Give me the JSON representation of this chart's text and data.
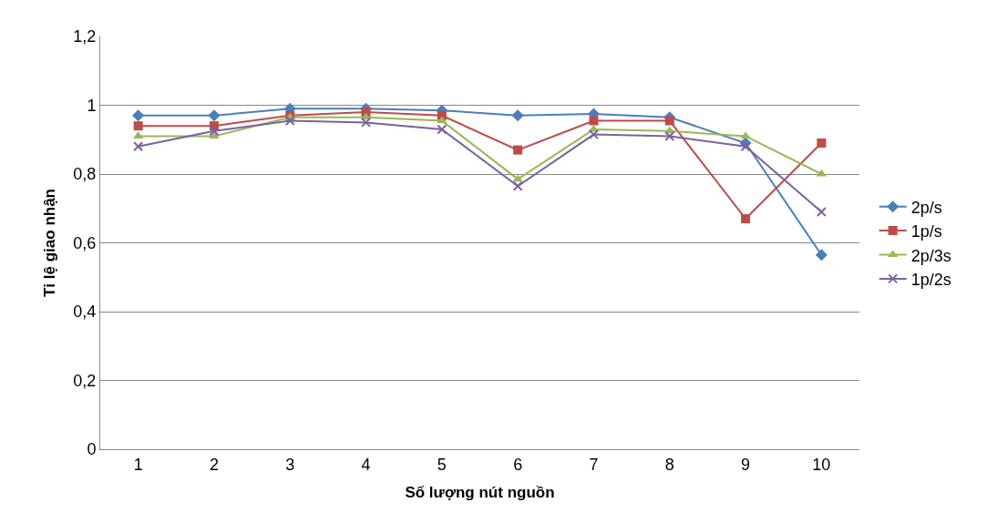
{
  "chart_data": {
    "type": "line",
    "xlabel": "Số lượng nút nguồn",
    "ylabel": "Tỉ lệ giao nhận",
    "categories": [
      "1",
      "2",
      "3",
      "4",
      "5",
      "6",
      "7",
      "8",
      "9",
      "10"
    ],
    "ylim": [
      0,
      1.2
    ],
    "yticks": [
      {
        "value": 0,
        "label": "0"
      },
      {
        "value": 0.2,
        "label": "0,2"
      },
      {
        "value": 0.4,
        "label": "0,4"
      },
      {
        "value": 0.6,
        "label": "0,6"
      },
      {
        "value": 0.8,
        "label": "0,8"
      },
      {
        "value": 1,
        "label": "1"
      },
      {
        "value": 1.2,
        "label": "1,2"
      }
    ],
    "grid": "y",
    "legend": "right",
    "series": [
      {
        "name": "2p/s",
        "color": "#4a7ebb",
        "marker": "diamond",
        "values": [
          0.97,
          0.97,
          0.99,
          0.99,
          0.985,
          0.97,
          0.975,
          0.965,
          0.89,
          0.565
        ]
      },
      {
        "name": "1p/s",
        "color": "#be4b48",
        "marker": "square",
        "values": [
          0.94,
          0.94,
          0.97,
          0.98,
          0.97,
          0.87,
          0.955,
          0.955,
          0.67,
          0.89
        ]
      },
      {
        "name": "2p/3s",
        "color": "#98b954",
        "marker": "triangle",
        "values": [
          0.91,
          0.91,
          0.965,
          0.965,
          0.955,
          0.785,
          0.93,
          0.925,
          0.91,
          0.8
        ]
      },
      {
        "name": "1p/2s",
        "color": "#7d60a0",
        "marker": "cross",
        "values": [
          0.88,
          0.925,
          0.955,
          0.95,
          0.93,
          0.765,
          0.915,
          0.91,
          0.88,
          0.69
        ]
      }
    ]
  }
}
